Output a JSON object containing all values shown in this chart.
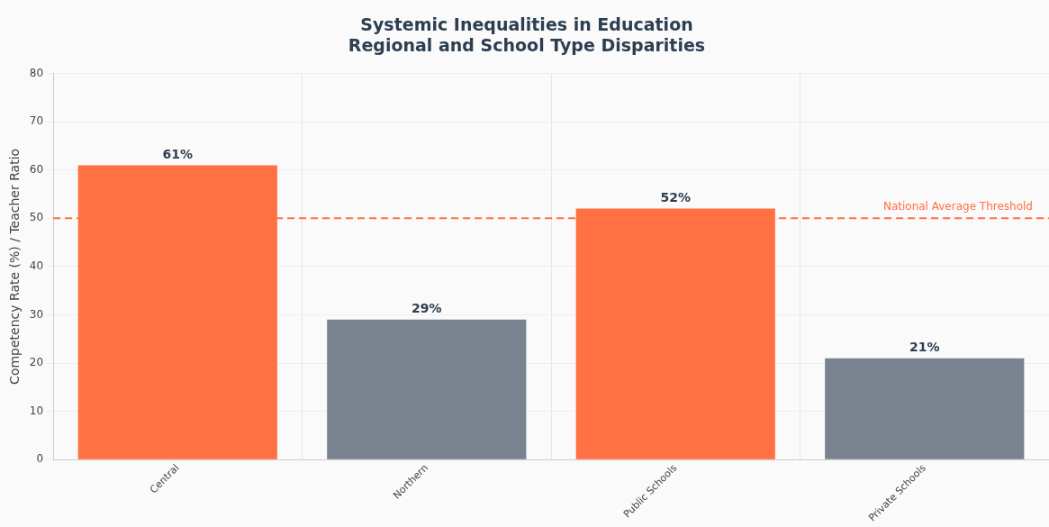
{
  "chart_data": {
    "type": "bar",
    "title": "Systemic Inequalities in Education",
    "subtitle": "Regional and School Type Disparities",
    "ylabel": "Competency Rate (%) / Teacher Ratio",
    "categories": [
      "Central",
      "Northern",
      "Public Schools",
      "Private Schools"
    ],
    "values": [
      61,
      29,
      52,
      21
    ],
    "colors": [
      "#ff7043",
      "#78838f",
      "#ff7043",
      "#78838f"
    ],
    "value_labels": [
      "61%",
      "29%",
      "52%",
      "21%"
    ],
    "ylim": [
      0,
      80
    ],
    "yticks": [
      0,
      10,
      20,
      30,
      40,
      50,
      60,
      70,
      80
    ],
    "grid": true,
    "legend": false,
    "ref_lines": [
      {
        "axis": "y",
        "value": 50,
        "label": "National Average Threshold",
        "color": "#ff7043",
        "line_style": "dashed"
      }
    ]
  }
}
